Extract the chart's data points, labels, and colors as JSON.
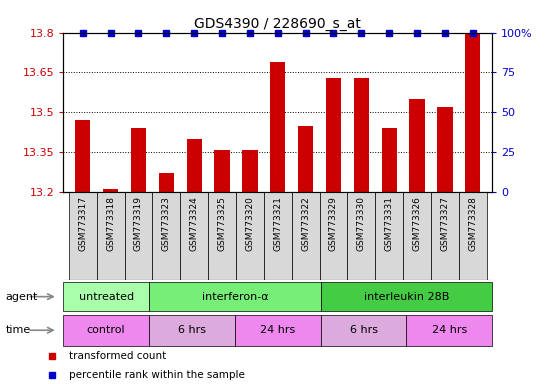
{
  "title": "GDS4390 / 228690_s_at",
  "samples": [
    "GSM773317",
    "GSM773318",
    "GSM773319",
    "GSM773323",
    "GSM773324",
    "GSM773325",
    "GSM773320",
    "GSM773321",
    "GSM773322",
    "GSM773329",
    "GSM773330",
    "GSM773331",
    "GSM773326",
    "GSM773327",
    "GSM773328"
  ],
  "bar_values": [
    13.47,
    13.21,
    13.44,
    13.27,
    13.4,
    13.36,
    13.36,
    13.69,
    13.45,
    13.63,
    13.63,
    13.44,
    13.55,
    13.52,
    13.8
  ],
  "ymin": 13.2,
  "ymax": 13.8,
  "yticks": [
    13.2,
    13.35,
    13.5,
    13.65,
    13.8
  ],
  "right_yticks": [
    0,
    25,
    50,
    75,
    100
  ],
  "bar_color": "#cc0000",
  "dot_color": "#0000cc",
  "agent_groups": [
    {
      "label": "untreated",
      "span": 3,
      "color": "#aaffaa"
    },
    {
      "label": "interferon-α",
      "span": 6,
      "color": "#77ee77"
    },
    {
      "label": "interleukin 28B",
      "span": 6,
      "color": "#44cc44"
    }
  ],
  "time_groups": [
    {
      "label": "control",
      "span": 3,
      "color": "#ee88ee"
    },
    {
      "label": "6 hrs",
      "span": 3,
      "color": "#ddaadd"
    },
    {
      "label": "24 hrs",
      "span": 3,
      "color": "#ee88ee"
    },
    {
      "label": "6 hrs",
      "span": 3,
      "color": "#ddaadd"
    },
    {
      "label": "24 hrs",
      "span": 3,
      "color": "#ee88ee"
    }
  ],
  "legend": [
    {
      "color": "#cc0000",
      "marker": "s",
      "label": "transformed count"
    },
    {
      "color": "#0000cc",
      "marker": "s",
      "label": "percentile rank within the sample"
    }
  ]
}
